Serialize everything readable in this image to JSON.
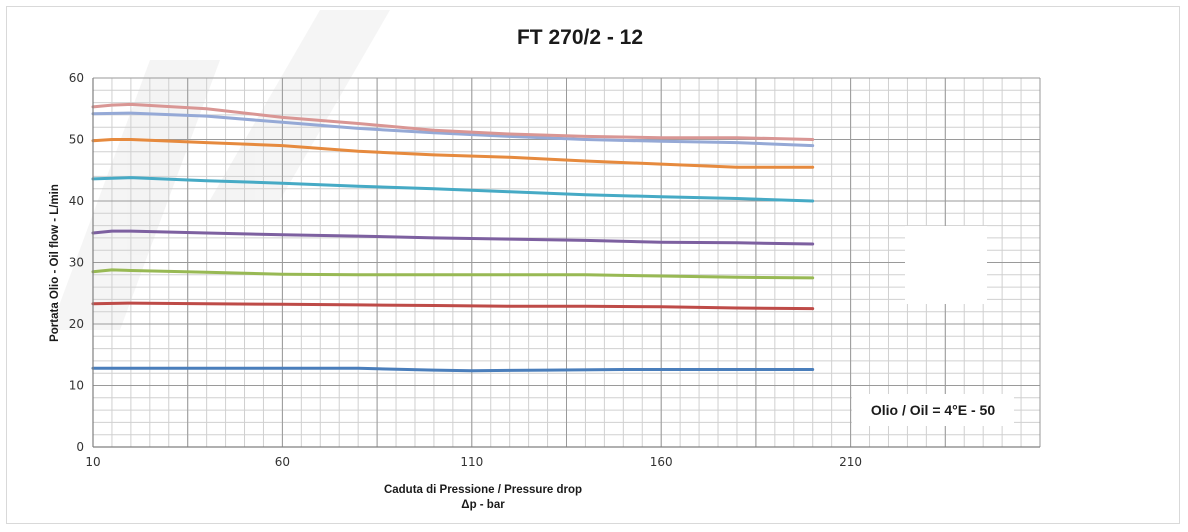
{
  "chart_data": {
    "type": "line",
    "title": "FT 270/2 - 12",
    "xlabel": "Caduta di Pressione / Pressure drop",
    "xlabel2": "Δp - bar",
    "ylabel": "Portata Olio - Oil flow - L/min",
    "xlim": [
      10,
      260
    ],
    "ylim": [
      0,
      60
    ],
    "x_ticks": [
      "10",
      "60",
      "110",
      "160",
      "210"
    ],
    "y_ticks": [
      "0",
      "10",
      "20",
      "30",
      "40",
      "50",
      "60"
    ],
    "grid": true,
    "annotation": "Olio / Oil = 4°E - 50",
    "series": [
      {
        "color": "#4a7ebb",
        "points": [
          [
            10,
            12.8
          ],
          [
            20,
            12.8
          ],
          [
            40,
            12.8
          ],
          [
            60,
            12.8
          ],
          [
            80,
            12.8
          ],
          [
            100,
            12.5
          ],
          [
            110,
            12.4
          ],
          [
            130,
            12.5
          ],
          [
            150,
            12.6
          ],
          [
            170,
            12.6
          ],
          [
            190,
            12.6
          ],
          [
            200,
            12.6
          ]
        ]
      },
      {
        "color": "#be4b48",
        "points": [
          [
            10,
            23.3
          ],
          [
            20,
            23.4
          ],
          [
            40,
            23.3
          ],
          [
            60,
            23.2
          ],
          [
            80,
            23.1
          ],
          [
            100,
            23.0
          ],
          [
            120,
            22.9
          ],
          [
            140,
            22.9
          ],
          [
            160,
            22.8
          ],
          [
            180,
            22.6
          ],
          [
            200,
            22.5
          ]
        ]
      },
      {
        "color": "#98b954",
        "points": [
          [
            10,
            28.5
          ],
          [
            15,
            28.8
          ],
          [
            20,
            28.7
          ],
          [
            40,
            28.4
          ],
          [
            60,
            28.1
          ],
          [
            80,
            28.0
          ],
          [
            100,
            28.0
          ],
          [
            120,
            28.0
          ],
          [
            140,
            28.0
          ],
          [
            160,
            27.8
          ],
          [
            180,
            27.6
          ],
          [
            200,
            27.5
          ]
        ]
      },
      {
        "color": "#7d60a0",
        "points": [
          [
            10,
            34.8
          ],
          [
            15,
            35.1
          ],
          [
            20,
            35.1
          ],
          [
            40,
            34.8
          ],
          [
            60,
            34.5
          ],
          [
            80,
            34.3
          ],
          [
            100,
            34.0
          ],
          [
            120,
            33.8
          ],
          [
            140,
            33.6
          ],
          [
            160,
            33.3
          ],
          [
            180,
            33.2
          ],
          [
            200,
            33.0
          ]
        ]
      },
      {
        "color": "#46aac5",
        "points": [
          [
            10,
            43.6
          ],
          [
            20,
            43.8
          ],
          [
            40,
            43.3
          ],
          [
            60,
            42.9
          ],
          [
            80,
            42.4
          ],
          [
            100,
            42.0
          ],
          [
            120,
            41.5
          ],
          [
            140,
            41.0
          ],
          [
            160,
            40.7
          ],
          [
            180,
            40.4
          ],
          [
            200,
            40.0
          ]
        ]
      },
      {
        "color": "#e68a3e",
        "points": [
          [
            10,
            49.8
          ],
          [
            15,
            50.0
          ],
          [
            20,
            50.0
          ],
          [
            40,
            49.5
          ],
          [
            60,
            49.0
          ],
          [
            80,
            48.1
          ],
          [
            100,
            47.5
          ],
          [
            120,
            47.1
          ],
          [
            140,
            46.5
          ],
          [
            160,
            46.0
          ],
          [
            180,
            45.5
          ],
          [
            200,
            45.5
          ]
        ]
      },
      {
        "color": "#95a9d6",
        "points": [
          [
            10,
            54.2
          ],
          [
            20,
            54.3
          ],
          [
            40,
            53.8
          ],
          [
            60,
            52.8
          ],
          [
            80,
            51.8
          ],
          [
            100,
            51.1
          ],
          [
            120,
            50.5
          ],
          [
            140,
            50.0
          ],
          [
            160,
            49.7
          ],
          [
            180,
            49.5
          ],
          [
            200,
            49.0
          ]
        ]
      },
      {
        "color": "#d99694",
        "points": [
          [
            10,
            55.3
          ],
          [
            15,
            55.6
          ],
          [
            20,
            55.7
          ],
          [
            40,
            55.0
          ],
          [
            60,
            53.6
          ],
          [
            80,
            52.6
          ],
          [
            100,
            51.5
          ],
          [
            120,
            50.9
          ],
          [
            140,
            50.5
          ],
          [
            160,
            50.3
          ],
          [
            180,
            50.3
          ],
          [
            200,
            50.0
          ]
        ]
      }
    ]
  }
}
